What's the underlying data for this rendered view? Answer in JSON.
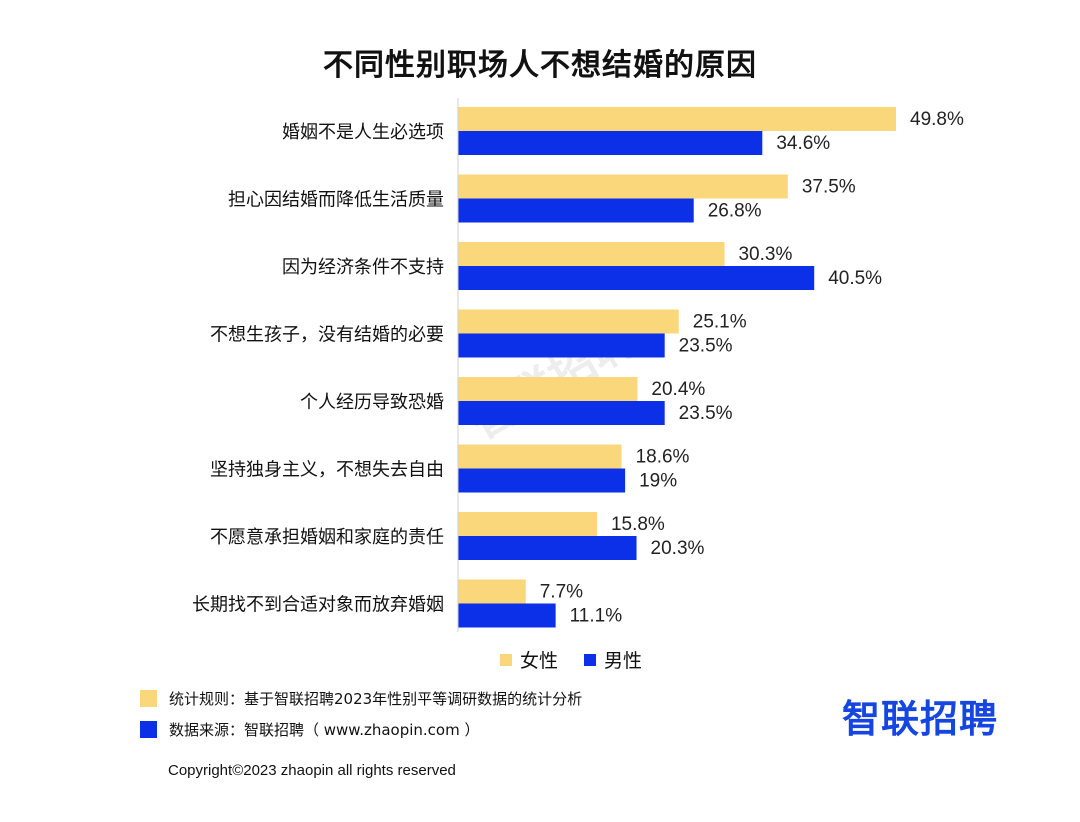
{
  "colors": {
    "female": "#F9D77A",
    "male": "#0C2FE8",
    "brand": "#1546E0",
    "note_yellow": "#F9D77A",
    "note_blue": "#0C2FE8"
  },
  "watermark": "智联招聘",
  "chart_data": {
    "type": "bar",
    "orientation": "horizontal",
    "title": "不同性别职场人不想结婚的原因",
    "categories": [
      "婚姻不是人生必选项",
      "担心因结婚而降低生活质量",
      "因为经济条件不支持",
      "不想生孩子，没有结婚的必要",
      "个人经历导致恐婚",
      "坚持独身主义，不想失去自由",
      "不愿意承担婚姻和家庭的责任",
      "长期找不到合适对象而放弃婚姻"
    ],
    "series": [
      {
        "name": "女性",
        "values": [
          49.8,
          37.5,
          30.3,
          25.1,
          20.4,
          18.6,
          15.8,
          7.7
        ],
        "labels": [
          "49.8%",
          "37.5%",
          "30.3%",
          "25.1%",
          "20.4%",
          "18.6%",
          "15.8%",
          "7.7%"
        ]
      },
      {
        "name": "男性",
        "values": [
          34.6,
          26.8,
          40.5,
          23.5,
          23.5,
          19,
          20.3,
          11.1
        ],
        "labels": [
          "34.6%",
          "26.8%",
          "40.5%",
          "23.5%",
          "23.5%",
          "19%",
          "20.3%",
          "11.1%"
        ]
      }
    ],
    "xlim": [
      0,
      50
    ],
    "legend": "bottom"
  },
  "notes": [
    {
      "text": "统计规则：基于智联招聘2023年性别平等调研数据的统计分析"
    },
    {
      "text": "数据来源：智联招聘（ www.zhaopin.com ）"
    }
  ],
  "logo": "智联招聘",
  "copyright": "Copyright©2023 zhaopin all rights reserved"
}
